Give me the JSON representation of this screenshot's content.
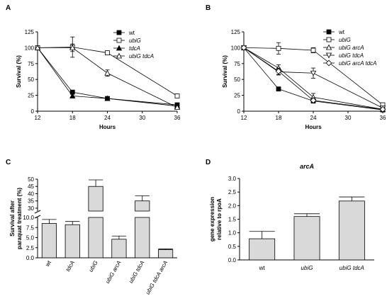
{
  "panels": [
    {
      "letter": "A"
    },
    {
      "letter": "B"
    },
    {
      "letter": "C"
    },
    {
      "letter": "D"
    }
  ],
  "chart_data": [
    {
      "panel": "A",
      "type": "line",
      "xlabel": "Hours",
      "ylabel": "Survival (%)",
      "xlim": [
        12,
        36
      ],
      "ylim": [
        0,
        125
      ],
      "xticks": [
        "12",
        "18",
        "24",
        "30",
        "36"
      ],
      "yticks": [
        "0",
        "25",
        "50",
        "75",
        "100",
        "125"
      ],
      "legend_position": "top-right",
      "series": [
        {
          "name": "wt",
          "marker": "filled-square",
          "x": [
            12,
            18,
            24,
            36
          ],
          "y": [
            100,
            30,
            20,
            10
          ],
          "err": [
            0,
            3,
            2,
            2
          ]
        },
        {
          "name": "ubiG",
          "marker": "open-square",
          "x": [
            12,
            18,
            24,
            36
          ],
          "y": [
            100,
            101,
            92,
            24
          ],
          "err": [
            0,
            16,
            3,
            2
          ]
        },
        {
          "name": "tdcA",
          "marker": "filled-triangle",
          "x": [
            12,
            18,
            24,
            36
          ],
          "y": [
            100,
            24,
            20,
            8
          ],
          "err": [
            0,
            3,
            2,
            2
          ]
        },
        {
          "name": "ubiG tdcA",
          "marker": "open-triangle",
          "x": [
            12,
            18,
            24,
            36
          ],
          "y": [
            100,
            100,
            60,
            6
          ],
          "err": [
            0,
            6,
            5,
            2
          ]
        }
      ]
    },
    {
      "panel": "B",
      "type": "line",
      "xlabel": "Hours",
      "ylabel": "Survival (%)",
      "xlim": [
        12,
        36
      ],
      "ylim": [
        0,
        125
      ],
      "xticks": [
        "12",
        "18",
        "24",
        "30",
        "36"
      ],
      "yticks": [
        "0",
        "25",
        "50",
        "75",
        "100",
        "125"
      ],
      "legend_position": "top-right",
      "series": [
        {
          "name": "wt",
          "marker": "filled-square",
          "x": [
            12,
            18,
            24,
            36
          ],
          "y": [
            100,
            35,
            16,
            2
          ],
          "err": [
            0,
            3,
            2,
            1
          ]
        },
        {
          "name": "ubiG",
          "marker": "open-square",
          "x": [
            12,
            18,
            24,
            36
          ],
          "y": [
            100,
            99,
            96,
            10
          ],
          "err": [
            0,
            9,
            4,
            2
          ]
        },
        {
          "name": "ubiG arcA",
          "marker": "open-triangle",
          "x": [
            12,
            18,
            24,
            36
          ],
          "y": [
            100,
            68,
            22,
            3
          ],
          "err": [
            0,
            5,
            6,
            1
          ]
        },
        {
          "name": "ubiG tdcA",
          "marker": "open-triangle-down",
          "x": [
            12,
            18,
            24,
            36
          ],
          "y": [
            100,
            62,
            60,
            5
          ],
          "err": [
            0,
            5,
            8,
            1
          ]
        },
        {
          "name": "ubiG arcA tdcA",
          "marker": "open-diamond",
          "x": [
            12,
            18,
            24,
            36
          ],
          "y": [
            100,
            63,
            17,
            3
          ],
          "err": [
            0,
            5,
            4,
            1
          ]
        }
      ]
    },
    {
      "panel": "C",
      "type": "bar",
      "ylabel": "Survival after paraquat treatment (%)",
      "ylabel_lines": [
        "Survival after",
        "paraquat treatment (%)"
      ],
      "broken_axis": true,
      "lower_ylim": [
        0,
        10
      ],
      "upper_ylim": [
        28,
        50
      ],
      "yticks_lower": [
        "0.0",
        "2.5",
        "5.0",
        "7.5",
        "10.0"
      ],
      "yticks_upper": [
        "30",
        "35",
        "40",
        "45",
        "50"
      ],
      "categories": [
        "wt",
        "tdcA",
        "ubiG",
        "ubiG arcA",
        "ubiG tdcA",
        "ubiG tdcA arcA"
      ],
      "values": [
        8.5,
        8.2,
        45,
        4.6,
        35,
        2.0
      ],
      "errors": [
        1.0,
        0.8,
        4.5,
        0.8,
        3.5,
        0.2
      ]
    },
    {
      "panel": "D",
      "type": "bar",
      "title": "arcA",
      "ylabel": "gene expression relative to rpoA",
      "ylabel_lines": [
        "gene expression",
        "relative to rpoA"
      ],
      "ylim": [
        0,
        3.0
      ],
      "yticks": [
        "0.0",
        "0.5",
        "1.0",
        "1.5",
        "2.0",
        "2.5",
        "3.0"
      ],
      "categories": [
        "wt",
        "ubiG",
        "ubiG tdcA"
      ],
      "values": [
        0.78,
        1.6,
        2.17
      ],
      "errors": [
        0.27,
        0.1,
        0.15
      ]
    }
  ]
}
